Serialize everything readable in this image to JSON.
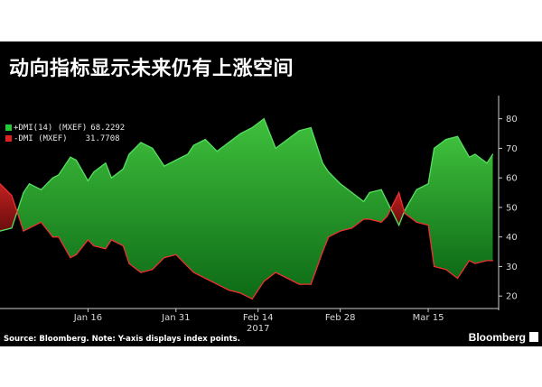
{
  "chart_data": {
    "type": "area",
    "title": "动向指标显示未来仍有上涨空间",
    "ylim": [
      17,
      86
    ],
    "yticks": [
      20,
      30,
      40,
      50,
      60,
      70,
      80
    ],
    "x_range": [
      "2017-01-01",
      "2017-03-27"
    ],
    "xticks": [
      {
        "date": "2017-01-16",
        "label": "Jan 16"
      },
      {
        "date": "2017-01-31",
        "label": "Jan 31"
      },
      {
        "date": "2017-02-14",
        "label": "Feb 14"
      },
      {
        "date": "2017-02-28",
        "label": "Feb 28"
      },
      {
        "date": "2017-03-15",
        "label": "Mar 15"
      }
    ],
    "year_label": "2017",
    "grid": false,
    "legend_position": "top-left",
    "colors": {
      "plus_fill": "#1f9a2b",
      "plus_line": "#44dd55",
      "minus_fill": "#a01818",
      "minus_line": "#ee2a2a",
      "background": "#000000"
    },
    "series": [
      {
        "name": "+DMI(14) (MXEF)",
        "value_label": "68.2292",
        "color": "#22c932",
        "x": [
          "2017-01-01",
          "2017-01-03",
          "2017-01-05",
          "2017-01-06",
          "2017-01-08",
          "2017-01-10",
          "2017-01-11",
          "2017-01-13",
          "2017-01-14",
          "2017-01-16",
          "2017-01-17",
          "2017-01-19",
          "2017-01-20",
          "2017-01-22",
          "2017-01-23",
          "2017-01-25",
          "2017-01-27",
          "2017-01-29",
          "2017-01-31",
          "2017-02-02",
          "2017-02-03",
          "2017-02-05",
          "2017-02-07",
          "2017-02-09",
          "2017-02-11",
          "2017-02-13",
          "2017-02-15",
          "2017-02-17",
          "2017-02-19",
          "2017-02-21",
          "2017-02-23",
          "2017-02-25",
          "2017-02-26",
          "2017-02-28",
          "2017-03-02",
          "2017-03-04",
          "2017-03-05",
          "2017-03-07",
          "2017-03-08",
          "2017-03-10",
          "2017-03-11",
          "2017-03-13",
          "2017-03-15",
          "2017-03-16",
          "2017-03-18",
          "2017-03-20",
          "2017-03-22",
          "2017-03-23",
          "2017-03-25",
          "2017-03-26"
        ],
        "values": [
          42,
          43,
          55,
          58,
          56,
          60,
          61,
          67,
          66,
          59,
          62,
          65,
          60,
          63,
          68,
          72,
          70,
          64,
          66,
          68,
          71,
          73,
          69,
          72,
          75,
          77,
          80,
          70,
          73,
          76,
          77,
          65,
          62,
          58,
          55,
          52,
          55,
          56,
          52,
          44,
          49,
          56,
          58,
          70,
          73,
          74,
          67,
          68,
          65,
          68
        ]
      },
      {
        "name": "-DMI (MXEF)",
        "value_label": "31.7708",
        "color": "#e32020",
        "x": [
          "2017-01-01",
          "2017-01-03",
          "2017-01-05",
          "2017-01-06",
          "2017-01-08",
          "2017-01-10",
          "2017-01-11",
          "2017-01-13",
          "2017-01-14",
          "2017-01-16",
          "2017-01-17",
          "2017-01-19",
          "2017-01-20",
          "2017-01-22",
          "2017-01-23",
          "2017-01-25",
          "2017-01-27",
          "2017-01-29",
          "2017-01-31",
          "2017-02-02",
          "2017-02-03",
          "2017-02-05",
          "2017-02-07",
          "2017-02-09",
          "2017-02-11",
          "2017-02-13",
          "2017-02-15",
          "2017-02-17",
          "2017-02-19",
          "2017-02-21",
          "2017-02-23",
          "2017-02-25",
          "2017-02-26",
          "2017-02-28",
          "2017-03-02",
          "2017-03-04",
          "2017-03-05",
          "2017-03-07",
          "2017-03-08",
          "2017-03-10",
          "2017-03-11",
          "2017-03-13",
          "2017-03-15",
          "2017-03-16",
          "2017-03-18",
          "2017-03-20",
          "2017-03-22",
          "2017-03-23",
          "2017-03-25",
          "2017-03-26"
        ],
        "values": [
          58,
          54,
          42,
          43,
          45,
          40,
          40,
          33,
          34,
          39,
          37,
          36,
          39,
          37,
          31,
          28,
          29,
          33,
          34,
          30,
          28,
          26,
          24,
          22,
          21,
          19,
          25,
          28,
          26,
          24,
          24,
          35,
          40,
          42,
          43,
          46,
          46,
          45,
          47,
          55,
          48,
          45,
          44,
          30,
          29,
          26,
          32,
          31,
          32,
          32
        ]
      }
    ],
    "footer": {
      "source": "Source: Bloomberg. Note: Y-axis displays index points.",
      "brand": "Bloomberg"
    }
  }
}
